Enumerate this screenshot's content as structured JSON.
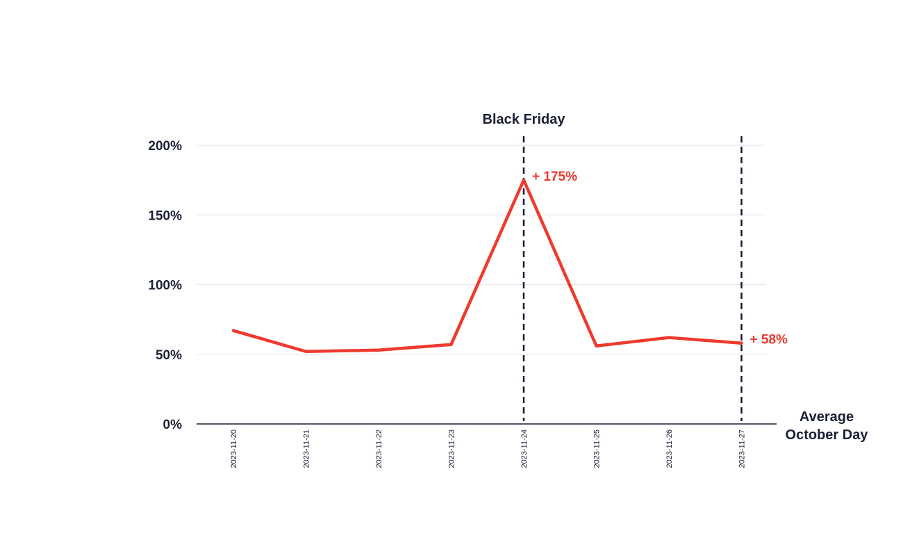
{
  "chart_data": {
    "type": "line",
    "categories": [
      "2023-11-20",
      "2023-11-21",
      "2023-11-22",
      "2023-11-23",
      "2023-11-24",
      "2023-11-25",
      "2023-11-26",
      "2023-11-27"
    ],
    "series": [
      {
        "values": [
          67,
          52,
          53,
          57,
          175,
          56,
          62,
          58
        ],
        "color": "#ee3a2f"
      }
    ],
    "y_ticks": [
      "0%",
      "50%",
      "100%",
      "150%",
      "200%"
    ],
    "ylim": [
      0,
      200
    ],
    "x_axis_title": "Average\nOctober Day",
    "grid": true,
    "reference_lines": [
      {
        "category": "2023-11-24",
        "label": "Black Friday",
        "style": "dashed"
      },
      {
        "category": "2023-11-27",
        "label": "",
        "style": "dashed"
      }
    ],
    "annotations": [
      {
        "category": "2023-11-24",
        "value": 175,
        "text": "+ 175%"
      },
      {
        "category": "2023-11-27",
        "value": 58,
        "text": "+ 58%"
      }
    ]
  }
}
